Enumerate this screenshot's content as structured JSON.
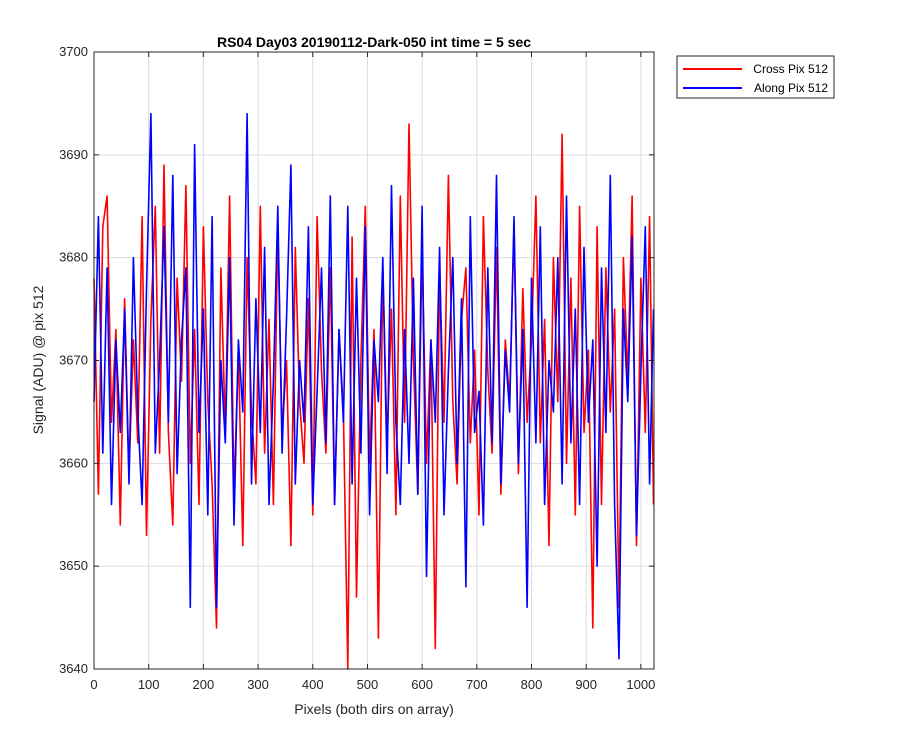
{
  "chart_data": {
    "type": "line",
    "title": "RS04 Day03 20190112-Dark-050 int time = 5 sec",
    "xlabel": "Pixels (both dirs on array)",
    "ylabel": "Signal (ADU) @ pix 512",
    "xlim": [
      0,
      1024
    ],
    "ylim": [
      3640,
      3700
    ],
    "xticks": [
      "0",
      "100",
      "200",
      "300",
      "400",
      "500",
      "600",
      "700",
      "800",
      "900",
      "1000"
    ],
    "yticks": [
      "3640",
      "3650",
      "3660",
      "3670",
      "3680",
      "3690",
      "3700"
    ],
    "grid": true,
    "legend_position": "outside-top-right",
    "series": [
      {
        "name": "Cross Pix 512",
        "color": "#ff0000",
        "x": [
          0,
          8,
          16,
          24,
          32,
          40,
          48,
          56,
          64,
          72,
          80,
          88,
          96,
          104,
          112,
          120,
          128,
          136,
          144,
          152,
          160,
          168,
          176,
          184,
          192,
          200,
          208,
          216,
          224,
          232,
          240,
          248,
          256,
          264,
          272,
          280,
          288,
          296,
          304,
          312,
          320,
          328,
          336,
          344,
          352,
          360,
          368,
          376,
          384,
          392,
          400,
          408,
          416,
          424,
          432,
          440,
          448,
          456,
          464,
          472,
          480,
          488,
          496,
          504,
          512,
          520,
          528,
          536,
          544,
          552,
          560,
          568,
          576,
          584,
          592,
          600,
          608,
          616,
          624,
          632,
          640,
          648,
          656,
          664,
          672,
          680,
          688,
          696,
          704,
          712,
          720,
          728,
          736,
          744,
          752,
          760,
          768,
          776,
          784,
          792,
          800,
          808,
          816,
          824,
          832,
          840,
          848,
          856,
          864,
          872,
          880,
          888,
          896,
          904,
          912,
          920,
          928,
          936,
          944,
          952,
          960,
          968,
          976,
          984,
          992,
          1000,
          1008,
          1016,
          1023
        ],
        "y": [
          3678,
          3657,
          3683,
          3686,
          3664,
          3673,
          3654,
          3676,
          3659,
          3672,
          3662,
          3684,
          3653,
          3674,
          3685,
          3661,
          3689,
          3663,
          3654,
          3678,
          3668,
          3687,
          3660,
          3673,
          3656,
          3683,
          3666,
          3658,
          3644,
          3679,
          3663,
          3686,
          3657,
          3671,
          3652,
          3680,
          3665,
          3658,
          3685,
          3661,
          3674,
          3656,
          3683,
          3663,
          3670,
          3652,
          3681,
          3666,
          3660,
          3676,
          3655,
          3684,
          3669,
          3661,
          3679,
          3656,
          3673,
          3665,
          3640,
          3682,
          3647,
          3670,
          3685,
          3660,
          3673,
          3643,
          3679,
          3662,
          3675,
          3655,
          3686,
          3664,
          3693,
          3670,
          3657,
          3681,
          3660,
          3672,
          3642,
          3679,
          3664,
          3688,
          3666,
          3658,
          3674,
          3679,
          3662,
          3671,
          3655,
          3684,
          3669,
          3661,
          3681,
          3657,
          3672,
          3666,
          3683,
          3659,
          3677,
          3664,
          3672,
          3686,
          3662,
          3674,
          3652,
          3680,
          3666,
          3692,
          3660,
          3678,
          3655,
          3685,
          3663,
          3671,
          3644,
          3683,
          3656,
          3679,
          3665,
          3675,
          3646,
          3680,
          3668,
          3686,
          3652,
          3678,
          3663,
          3684,
          3656
        ]
      },
      {
        "name": "Along Pix 512",
        "color": "#0000ff",
        "x": [
          0,
          8,
          16,
          24,
          32,
          40,
          48,
          56,
          64,
          72,
          80,
          88,
          96,
          104,
          112,
          120,
          128,
          136,
          144,
          152,
          160,
          168,
          176,
          184,
          192,
          200,
          208,
          216,
          224,
          232,
          240,
          248,
          256,
          264,
          272,
          280,
          288,
          296,
          304,
          312,
          320,
          328,
          336,
          344,
          352,
          360,
          368,
          376,
          384,
          392,
          400,
          408,
          416,
          424,
          432,
          440,
          448,
          456,
          464,
          472,
          480,
          488,
          496,
          504,
          512,
          520,
          528,
          536,
          544,
          552,
          560,
          568,
          576,
          584,
          592,
          600,
          608,
          616,
          624,
          632,
          640,
          648,
          656,
          664,
          672,
          680,
          688,
          696,
          704,
          712,
          720,
          728,
          736,
          744,
          752,
          760,
          768,
          776,
          784,
          792,
          800,
          808,
          816,
          824,
          832,
          840,
          848,
          856,
          864,
          872,
          880,
          888,
          896,
          904,
          912,
          920,
          928,
          936,
          944,
          952,
          960,
          968,
          976,
          984,
          992,
          1000,
          1008,
          1016,
          1023
        ],
        "y": [
          3666,
          3684,
          3661,
          3679,
          3656,
          3672,
          3663,
          3675,
          3658,
          3680,
          3665,
          3656,
          3677,
          3694,
          3661,
          3670,
          3683,
          3664,
          3688,
          3659,
          3672,
          3679,
          3646,
          3691,
          3663,
          3675,
          3655,
          3684,
          3646,
          3670,
          3662,
          3680,
          3654,
          3672,
          3665,
          3694,
          3658,
          3676,
          3663,
          3681,
          3656,
          3668,
          3685,
          3661,
          3674,
          3689,
          3658,
          3670,
          3664,
          3683,
          3656,
          3667,
          3679,
          3662,
          3686,
          3656,
          3673,
          3664,
          3685,
          3658,
          3678,
          3661,
          3683,
          3655,
          3672,
          3666,
          3680,
          3659,
          3687,
          3664,
          3656,
          3673,
          3660,
          3678,
          3657,
          3685,
          3649,
          3672,
          3664,
          3681,
          3655,
          3669,
          3680,
          3660,
          3676,
          3648,
          3684,
          3663,
          3667,
          3654,
          3679,
          3662,
          3688,
          3658,
          3671,
          3665,
          3684,
          3660,
          3673,
          3646,
          3678,
          3662,
          3683,
          3656,
          3670,
          3665,
          3680,
          3658,
          3686,
          3662,
          3675,
          3656,
          3681,
          3664,
          3672,
          3650,
          3679,
          3663,
          3688,
          3656,
          3641,
          3675,
          3666,
          3682,
          3653,
          3669,
          3683,
          3658,
          3675
        ]
      }
    ]
  }
}
